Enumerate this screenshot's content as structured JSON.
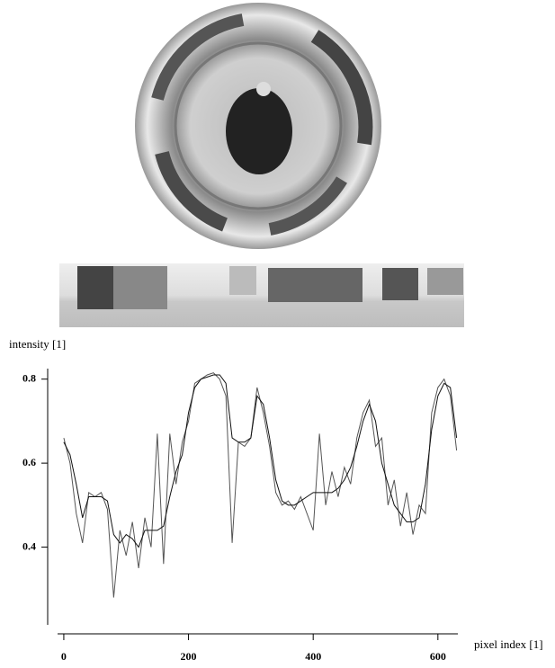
{
  "chart_data": {
    "type": "line",
    "ylabel": "intensity [1]",
    "xlabel": "pixel index [1]",
    "x": [
      0,
      10,
      20,
      30,
      40,
      50,
      60,
      70,
      80,
      90,
      100,
      110,
      120,
      130,
      140,
      150,
      160,
      170,
      180,
      190,
      200,
      210,
      220,
      230,
      240,
      250,
      260,
      270,
      280,
      290,
      300,
      310,
      320,
      330,
      340,
      350,
      360,
      370,
      380,
      390,
      400,
      410,
      420,
      430,
      440,
      450,
      460,
      470,
      480,
      490,
      500,
      510,
      520,
      530,
      540,
      550,
      560,
      570,
      580,
      590,
      600,
      610,
      620,
      630
    ],
    "series": [
      {
        "color": "#555555",
        "values": [
          0.66,
          0.6,
          0.48,
          0.41,
          0.53,
          0.52,
          0.53,
          0.49,
          0.28,
          0.44,
          0.38,
          0.46,
          0.35,
          0.47,
          0.4,
          0.67,
          0.36,
          0.67,
          0.55,
          0.65,
          0.7,
          0.79,
          0.8,
          0.81,
          0.815,
          0.8,
          0.76,
          0.41,
          0.65,
          0.64,
          0.66,
          0.78,
          0.72,
          0.64,
          0.53,
          0.5,
          0.51,
          0.49,
          0.52,
          0.48,
          0.44,
          0.67,
          0.5,
          0.58,
          0.52,
          0.59,
          0.55,
          0.66,
          0.72,
          0.75,
          0.64,
          0.66,
          0.5,
          0.56,
          0.45,
          0.53,
          0.43,
          0.5,
          0.48,
          0.72,
          0.78,
          0.8,
          0.76,
          0.63
        ]
      },
      {
        "color": "#111111",
        "values": [
          0.65,
          0.62,
          0.55,
          0.47,
          0.52,
          0.52,
          0.52,
          0.51,
          0.43,
          0.41,
          0.43,
          0.42,
          0.4,
          0.44,
          0.44,
          0.44,
          0.45,
          0.52,
          0.58,
          0.62,
          0.72,
          0.78,
          0.8,
          0.805,
          0.81,
          0.81,
          0.79,
          0.66,
          0.65,
          0.65,
          0.66,
          0.76,
          0.74,
          0.66,
          0.56,
          0.51,
          0.5,
          0.5,
          0.51,
          0.52,
          0.53,
          0.53,
          0.53,
          0.53,
          0.54,
          0.56,
          0.59,
          0.64,
          0.7,
          0.74,
          0.7,
          0.6,
          0.55,
          0.5,
          0.48,
          0.46,
          0.46,
          0.47,
          0.55,
          0.68,
          0.76,
          0.79,
          0.78,
          0.66
        ]
      }
    ],
    "xlim": [
      -10,
      632
    ],
    "ylim": [
      0.215,
      0.825
    ],
    "xticks": [
      0,
      200,
      400,
      600
    ],
    "yticks": [
      0.4,
      0.6,
      0.8
    ]
  }
}
